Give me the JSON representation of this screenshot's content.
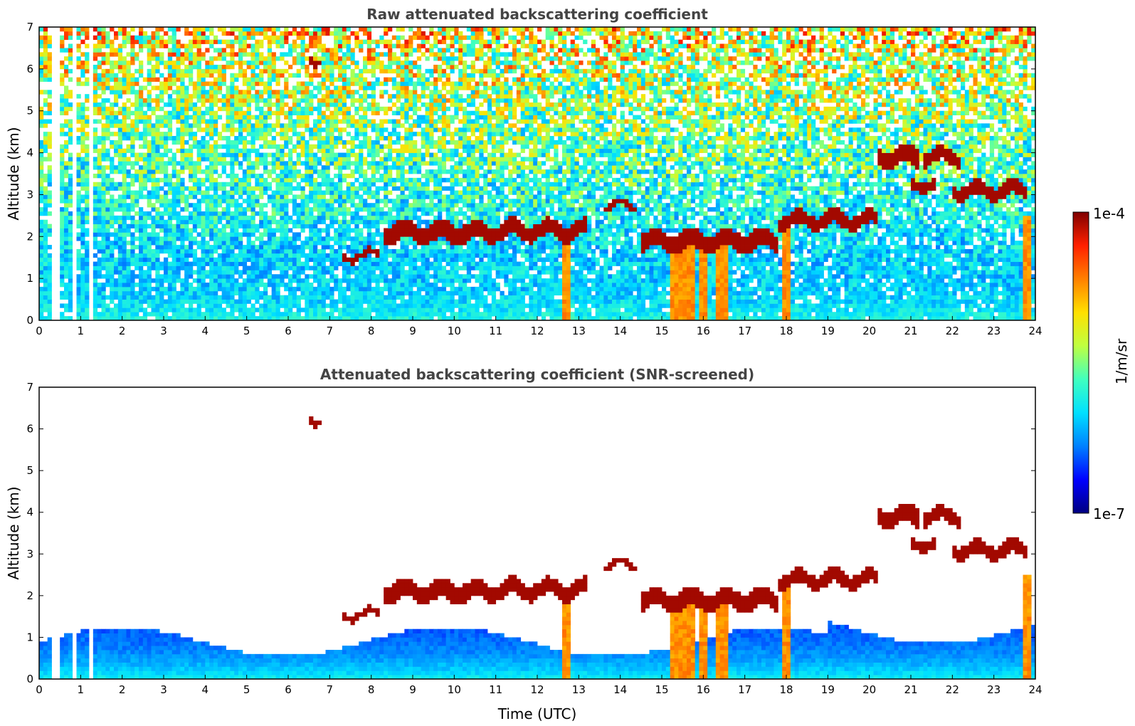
{
  "figure": {
    "colormap": [
      "#000080",
      "#0000ff",
      "#0080ff",
      "#00e0ff",
      "#40ffbf",
      "#bfff40",
      "#ffe000",
      "#ff8000",
      "#ff2000",
      "#800000"
    ],
    "colorbar": {
      "label": "1/m/sr",
      "max_label": "1e-4",
      "min_label": "1e-7",
      "scale": "log"
    }
  },
  "chart_data": [
    {
      "type": "heatmap",
      "title": "Raw attenuated backscattering coefficient",
      "ylabel": "Altitude (km)",
      "xlabel": "",
      "xlim": [
        0,
        24
      ],
      "ylim": [
        0,
        7
      ],
      "xticks": [
        "0",
        "1",
        "2",
        "3",
        "4",
        "5",
        "6",
        "7",
        "8",
        "9",
        "10",
        "11",
        "12",
        "13",
        "14",
        "15",
        "16",
        "17",
        "18",
        "19",
        "20",
        "21",
        "22",
        "23",
        "24"
      ],
      "yticks": [
        "0",
        "1",
        "2",
        "3",
        "4",
        "5",
        "6",
        "7"
      ],
      "screened": false,
      "data_gaps_hours": [
        [
          0.3,
          0.5
        ],
        [
          0.82,
          0.86
        ],
        [
          0.98,
          1.02
        ],
        [
          1.08,
          1.12
        ],
        [
          1.18,
          1.22
        ],
        [
          1.25,
          1.3
        ]
      ],
      "cloud_layers": [
        {
          "t": [
            7.3,
            8.2
          ],
          "alt": [
            1.4,
            1.7
          ]
        },
        {
          "t": [
            8.3,
            11.0
          ],
          "alt": [
            1.7,
            2.5
          ]
        },
        {
          "t": [
            11.0,
            13.2
          ],
          "alt": [
            1.8,
            2.5
          ]
        },
        {
          "t": [
            13.6,
            14.4
          ],
          "alt": [
            2.6,
            2.9
          ]
        },
        {
          "t": [
            14.5,
            17.8
          ],
          "alt": [
            1.5,
            2.3
          ]
        },
        {
          "t": [
            17.8,
            20.2
          ],
          "alt": [
            2.1,
            2.7
          ]
        },
        {
          "t": [
            20.2,
            21.2
          ],
          "alt": [
            3.5,
            4.3
          ]
        },
        {
          "t": [
            21.3,
            22.2
          ],
          "alt": [
            3.6,
            4.2
          ]
        },
        {
          "t": [
            21.0,
            21.6
          ],
          "alt": [
            3.0,
            3.5
          ]
        },
        {
          "t": [
            22.0,
            23.8
          ],
          "alt": [
            2.8,
            3.4
          ]
        },
        {
          "t": [
            6.5,
            6.8
          ],
          "alt": [
            6.1,
            6.4
          ]
        }
      ],
      "precipitation_shafts": [
        {
          "t": [
            12.6,
            12.75
          ],
          "top": 2.0
        },
        {
          "t": [
            15.2,
            15.8
          ],
          "top": 1.9
        },
        {
          "t": [
            15.9,
            16.1
          ],
          "top": 1.8
        },
        {
          "t": [
            16.3,
            16.6
          ],
          "top": 1.8
        },
        {
          "t": [
            17.9,
            18.05
          ],
          "top": 2.2
        },
        {
          "t": [
            23.7,
            23.85
          ],
          "top": 2.5
        }
      ]
    },
    {
      "type": "heatmap",
      "title": "Attenuated backscattering coefficient (SNR-screened)",
      "ylabel": "Altitude (km)",
      "xlabel": "Time (UTC)",
      "xlim": [
        0,
        24
      ],
      "ylim": [
        0,
        7
      ],
      "xticks": [
        "0",
        "1",
        "2",
        "3",
        "4",
        "5",
        "6",
        "7",
        "8",
        "9",
        "10",
        "11",
        "12",
        "13",
        "14",
        "15",
        "16",
        "17",
        "18",
        "19",
        "20",
        "21",
        "22",
        "23",
        "24"
      ],
      "yticks": [
        "0",
        "1",
        "2",
        "3",
        "4",
        "5",
        "6",
        "7"
      ],
      "screened": true
    }
  ]
}
